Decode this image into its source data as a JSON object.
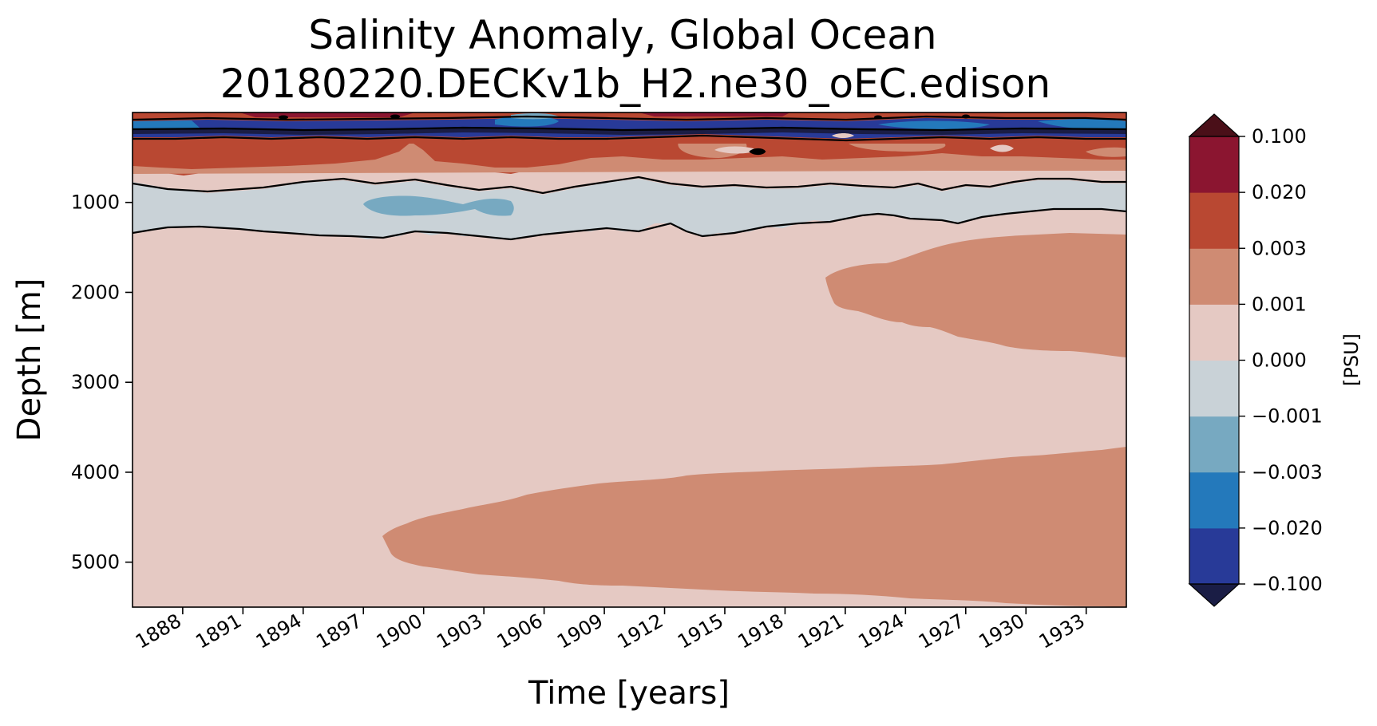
{
  "chart_data": {
    "type": "heatmap",
    "title": "Salinity Anomaly, Global Ocean",
    "subtitle": "20180220.DECKv1b_H2.ne30_oEC.edison",
    "xlabel": "Time [years]",
    "ylabel": "Depth [m]",
    "xlim": [
      1885.5,
      1935.0
    ],
    "ylim": [
      5500,
      0
    ],
    "xticks": [
      1888,
      1891,
      1894,
      1897,
      1900,
      1903,
      1906,
      1909,
      1912,
      1915,
      1918,
      1921,
      1924,
      1927,
      1930,
      1933
    ],
    "yticks": [
      1000,
      2000,
      3000,
      4000,
      5000
    ],
    "colorbar": {
      "label": "[PSU]",
      "levels": [
        -0.1,
        -0.02,
        -0.003,
        -0.001,
        0.0,
        0.001,
        0.003,
        0.02,
        0.1
      ],
      "tick_labels": [
        "−0.100",
        "−0.020",
        "−0.003",
        "−0.001",
        "0.000",
        "0.001",
        "0.003",
        "0.020",
        "0.100"
      ],
      "colors": [
        "#283a98",
        "#2479bb",
        "#77a9c1",
        "#c9d2d7",
        "#e5c9c3",
        "#cf8b73",
        "#b94832",
        "#8b1530"
      ],
      "extend_low_color": "#1a1d45",
      "extend_high_color": "#4a0f18"
    },
    "regions": [
      {
        "name": "background",
        "value_band": [
          0.0,
          0.001
        ]
      },
      {
        "name": "surface-layer",
        "depth_range": [
          0,
          300
        ],
        "value_band": [
          -0.1,
          0.1
        ]
      },
      {
        "name": "upper-positive-layer",
        "depth_range": [
          300,
          900
        ],
        "value_band": [
          0.001,
          0.02
        ]
      },
      {
        "name": "intermediate-negative-layer",
        "depth_range": [
          850,
          1400
        ],
        "value_band": [
          -0.001,
          0.0
        ]
      },
      {
        "name": "intermediate-blue-patch",
        "time_range": [
          1897,
          1904
        ],
        "depth_range": [
          900,
          1150
        ],
        "value_band": [
          -0.003,
          -0.001
        ]
      },
      {
        "name": "mid-depth-positive-lobe",
        "time_range": [
          1919.5,
          1935
        ],
        "depth_range": [
          1300,
          2700
        ],
        "value_band": [
          0.001,
          0.003
        ]
      },
      {
        "name": "abyssal-positive-lobe",
        "time_range": [
          1897.5,
          1935
        ],
        "depth_range": [
          3700,
          5500
        ],
        "value_band": [
          0.001,
          0.003
        ]
      }
    ]
  }
}
